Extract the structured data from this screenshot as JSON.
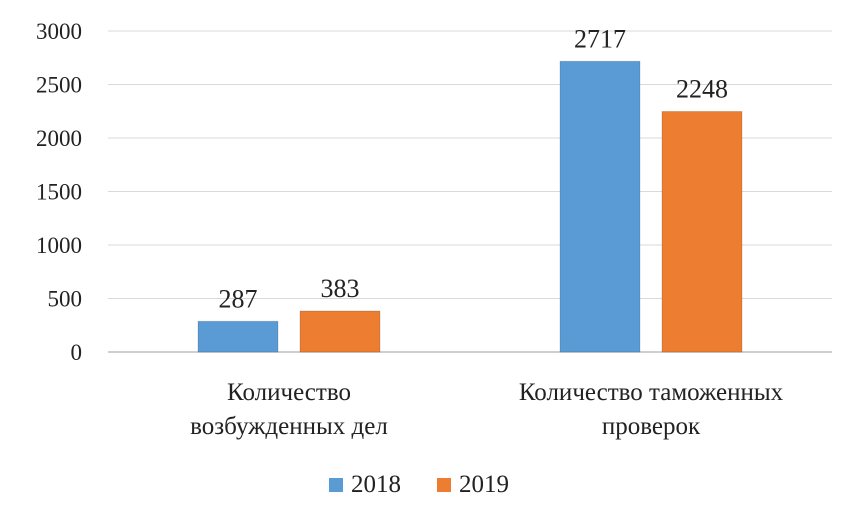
{
  "chart_data": {
    "type": "bar",
    "categories": [
      [
        "Количество",
        "возбужденных дел"
      ],
      [
        "Количество таможенных",
        "проверок"
      ]
    ],
    "series": [
      {
        "name": "2018",
        "values": [
          287,
          2717
        ],
        "color": "#5b9bd5"
      },
      {
        "name": "2019",
        "values": [
          383,
          2248
        ],
        "color": "#ed7d31"
      }
    ],
    "ylim": [
      0,
      3000
    ],
    "yticks": [
      0,
      500,
      1000,
      1500,
      2000,
      2500,
      3000
    ],
    "grid": true,
    "legend": "bottom",
    "data_labels": true
  }
}
